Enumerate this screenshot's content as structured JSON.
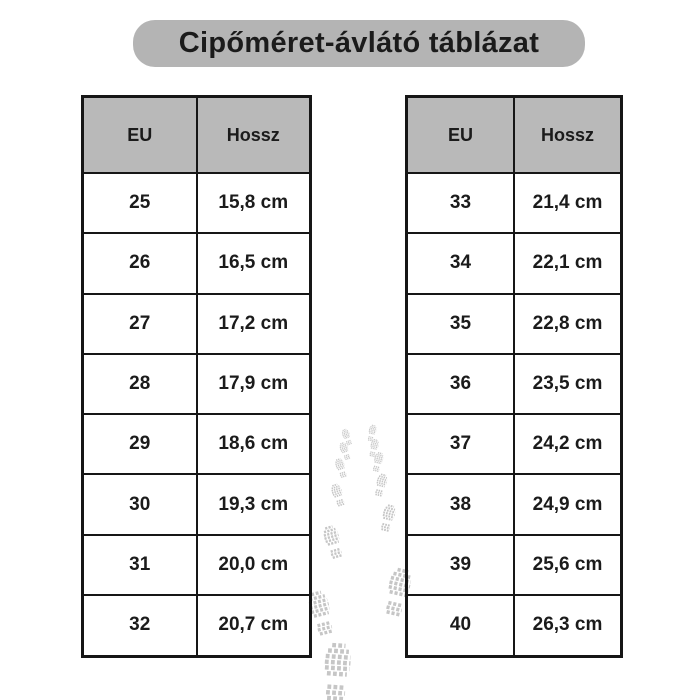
{
  "title": "Cipőméret-ávlátó táblázat",
  "tables": [
    {
      "name": "sizes-25-32",
      "headers": [
        "EU",
        "Hossz"
      ],
      "rows": [
        [
          "25",
          "15,8 cm"
        ],
        [
          "26",
          "16,5 cm"
        ],
        [
          "27",
          "17,2 cm"
        ],
        [
          "28",
          "17,9 cm"
        ],
        [
          "29",
          "18,6 cm"
        ],
        [
          "30",
          "19,3 cm"
        ],
        [
          "31",
          "20,0 cm"
        ],
        [
          "32",
          "20,7 cm"
        ]
      ]
    },
    {
      "name": "sizes-33-40",
      "headers": [
        "EU",
        "Hossz"
      ],
      "rows": [
        [
          "33",
          "21,4 cm"
        ],
        [
          "34",
          "22,1 cm"
        ],
        [
          "35",
          "22,8 cm"
        ],
        [
          "36",
          "23,5 cm"
        ],
        [
          "37",
          "24,2 cm"
        ],
        [
          "38",
          "24,9 cm"
        ],
        [
          "39",
          "25,6 cm"
        ],
        [
          "40",
          "26,3 cm"
        ]
      ]
    }
  ],
  "chart_data": {
    "type": "table",
    "title": "Cipőméret-ávlátó táblázat",
    "columns": [
      "EU",
      "Hossz"
    ],
    "eu_sizes": [
      25,
      26,
      27,
      28,
      29,
      30,
      31,
      32,
      33,
      34,
      35,
      36,
      37,
      38,
      39,
      40
    ],
    "lengths_cm": [
      15.8,
      16.5,
      17.2,
      17.9,
      18.6,
      19.3,
      20.0,
      20.7,
      21.4,
      22.1,
      22.8,
      23.5,
      24.2,
      24.9,
      25.6,
      26.3
    ],
    "layout": "two side-by-side tables: EU 25-32 left, EU 33-40 right"
  },
  "colors": {
    "page_bg": "#ffffff",
    "banner_bg": "#b4b4b4",
    "header_bg": "#b9b9b9",
    "border": "#161616",
    "text": "#1b1b1b",
    "footprint": "#c6c6c6"
  },
  "decor": {
    "footprint_icon": "bootprint-trail"
  }
}
